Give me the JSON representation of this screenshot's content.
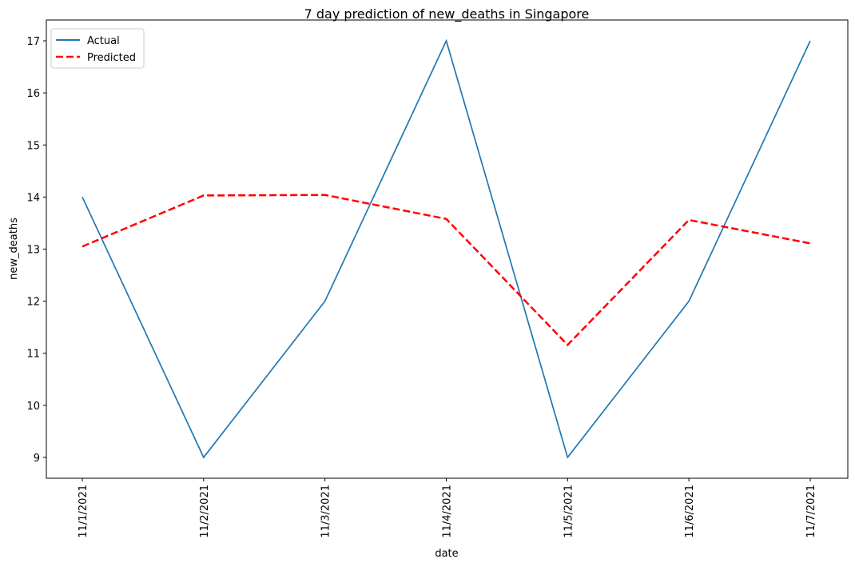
{
  "chart_data": {
    "type": "line",
    "title": "7 day prediction of new_deaths in Singapore",
    "xlabel": "date",
    "ylabel": "new_deaths",
    "categories": [
      "11/1/2021",
      "11/2/2021",
      "11/3/2021",
      "11/4/2021",
      "11/5/2021",
      "11/6/2021",
      "11/7/2021"
    ],
    "yticks": [
      9,
      10,
      11,
      12,
      13,
      14,
      15,
      16,
      17
    ],
    "ylim": [
      8.6,
      17.4
    ],
    "legend_position": "top-left",
    "grid": false,
    "series": [
      {
        "name": "Actual",
        "values": [
          14,
          9,
          12,
          17,
          9,
          12,
          17
        ],
        "color": "#1f77b4",
        "style": "solid"
      },
      {
        "name": "Predicted",
        "values": [
          13.05,
          14.03,
          14.04,
          13.58,
          11.16,
          13.56,
          13.11
        ],
        "color": "#ff0000",
        "style": "dashed"
      }
    ]
  }
}
